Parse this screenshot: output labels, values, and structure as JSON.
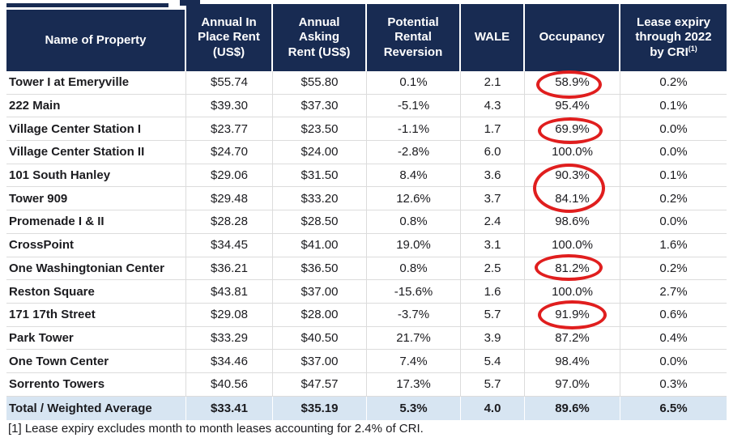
{
  "colors": {
    "header_bg": "#182B52",
    "header_text": "#FFFFFF",
    "total_row_bg": "#D7E5F2",
    "grid_line": "#DCDCDC",
    "annotation_red": "#E01E1E",
    "body_text": "#1B1B1F"
  },
  "table": {
    "headers": {
      "name": "Name of Property",
      "in_place_rent": "Annual In\nPlace Rent\n(US$)",
      "asking_rent": "Annual\nAsking\nRent (US$)",
      "reversion": "Potential\nRental\nReversion",
      "wale": "WALE",
      "occupancy": "Occupancy",
      "lease_expiry": "Lease expiry\nthrough 2022\nby CRI",
      "lease_expiry_footnote_marker": "(1)"
    },
    "rows": [
      {
        "name": "Tower I at Emeryville",
        "in_place": "$55.74",
        "asking": "$55.80",
        "reversion": "0.1%",
        "wale": "2.1",
        "occupancy": "58.9%",
        "expiry": "0.2%"
      },
      {
        "name": "222 Main",
        "in_place": "$39.30",
        "asking": "$37.30",
        "reversion": "-5.1%",
        "wale": "4.3",
        "occupancy": "95.4%",
        "expiry": "0.1%"
      },
      {
        "name": "Village Center Station I",
        "in_place": "$23.77",
        "asking": "$23.50",
        "reversion": "-1.1%",
        "wale": "1.7",
        "occupancy": "69.9%",
        "expiry": "0.0%"
      },
      {
        "name": "Village Center Station II",
        "in_place": "$24.70",
        "asking": "$24.00",
        "reversion": "-2.8%",
        "wale": "6.0",
        "occupancy": "100.0%",
        "expiry": "0.0%"
      },
      {
        "name": "101 South Hanley",
        "in_place": "$29.06",
        "asking": "$31.50",
        "reversion": "8.4%",
        "wale": "3.6",
        "occupancy": "90.3%",
        "expiry": "0.1%"
      },
      {
        "name": "Tower 909",
        "in_place": "$29.48",
        "asking": "$33.20",
        "reversion": "12.6%",
        "wale": "3.7",
        "occupancy": "84.1%",
        "expiry": "0.2%"
      },
      {
        "name": "Promenade I & II",
        "in_place": "$28.28",
        "asking": "$28.50",
        "reversion": "0.8%",
        "wale": "2.4",
        "occupancy": "98.6%",
        "expiry": "0.0%"
      },
      {
        "name": "CrossPoint",
        "in_place": "$34.45",
        "asking": "$41.00",
        "reversion": "19.0%",
        "wale": "3.1",
        "occupancy": "100.0%",
        "expiry": "1.6%"
      },
      {
        "name": "One Washingtonian Center",
        "in_place": "$36.21",
        "asking": "$36.50",
        "reversion": "0.8%",
        "wale": "2.5",
        "occupancy": "81.2%",
        "expiry": "0.2%"
      },
      {
        "name": "Reston Square",
        "in_place": "$43.81",
        "asking": "$37.00",
        "reversion": "-15.6%",
        "wale": "1.6",
        "occupancy": "100.0%",
        "expiry": "2.7%"
      },
      {
        "name": "171 17th Street",
        "in_place": "$29.08",
        "asking": "$28.00",
        "reversion": "-3.7%",
        "wale": "5.7",
        "occupancy": "91.9%",
        "expiry": "0.6%"
      },
      {
        "name": "Park Tower",
        "in_place": "$33.29",
        "asking": "$40.50",
        "reversion": "21.7%",
        "wale": "3.9",
        "occupancy": "87.2%",
        "expiry": "0.4%"
      },
      {
        "name": "One Town Center",
        "in_place": "$34.46",
        "asking": "$37.00",
        "reversion": "7.4%",
        "wale": "5.4",
        "occupancy": "98.4%",
        "expiry": "0.0%"
      },
      {
        "name": "Sorrento Towers",
        "in_place": "$40.56",
        "asking": "$47.57",
        "reversion": "17.3%",
        "wale": "5.7",
        "occupancy": "97.0%",
        "expiry": "0.3%"
      }
    ],
    "total_row": {
      "name": "Total / Weighted Average",
      "in_place": "$33.41",
      "asking": "$35.19",
      "reversion": "5.3%",
      "wale": "4.0",
      "occupancy": "89.6%",
      "expiry": "6.5%"
    },
    "annotations": {
      "circled_occupancy_values": [
        "58.9%",
        "69.9%",
        "90.3%",
        "84.1%",
        "81.2%",
        "91.9%"
      ]
    }
  },
  "footnote": "[1] Lease expiry excludes month to month leases accounting for 2.4% of CRI."
}
